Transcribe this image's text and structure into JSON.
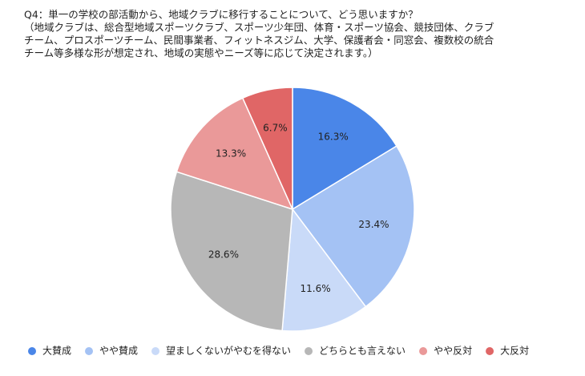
{
  "chart_data": {
    "type": "pie",
    "title": "Q4：単一の学校の部活動から、地域クラブに移行することについて、どう思いますか？",
    "subtitle": [
      "（地域クラブは、総合型地域スポーツクラブ、スポーツ少年団、体育・スポーツ協会、競技団体、クラブ",
      "チーム、プロスポーツチーム、民間事業者、フィットネスジム、大学、保護者会・同窓会、複数校の統合",
      "チーム等多様な形が想定され、地域の実態やニーズ等に応じて決定されます。）"
    ],
    "categories": [
      "大賛成",
      "やや賛成",
      "望ましくないがやむを得ない",
      "どちらとも言えない",
      "やや反対",
      "大反対"
    ],
    "values": [
      16.3,
      23.4,
      11.6,
      28.6,
      13.3,
      6.7
    ],
    "value_labels": [
      "16.3%",
      "23.4%",
      "11.6%",
      "28.6%",
      "13.3%",
      "6.7%"
    ],
    "colors": [
      "#4a86e8",
      "#a4c2f4",
      "#c9daf8",
      "#b7b7b7",
      "#ea9999",
      "#e06666"
    ],
    "legend": "bottom"
  }
}
